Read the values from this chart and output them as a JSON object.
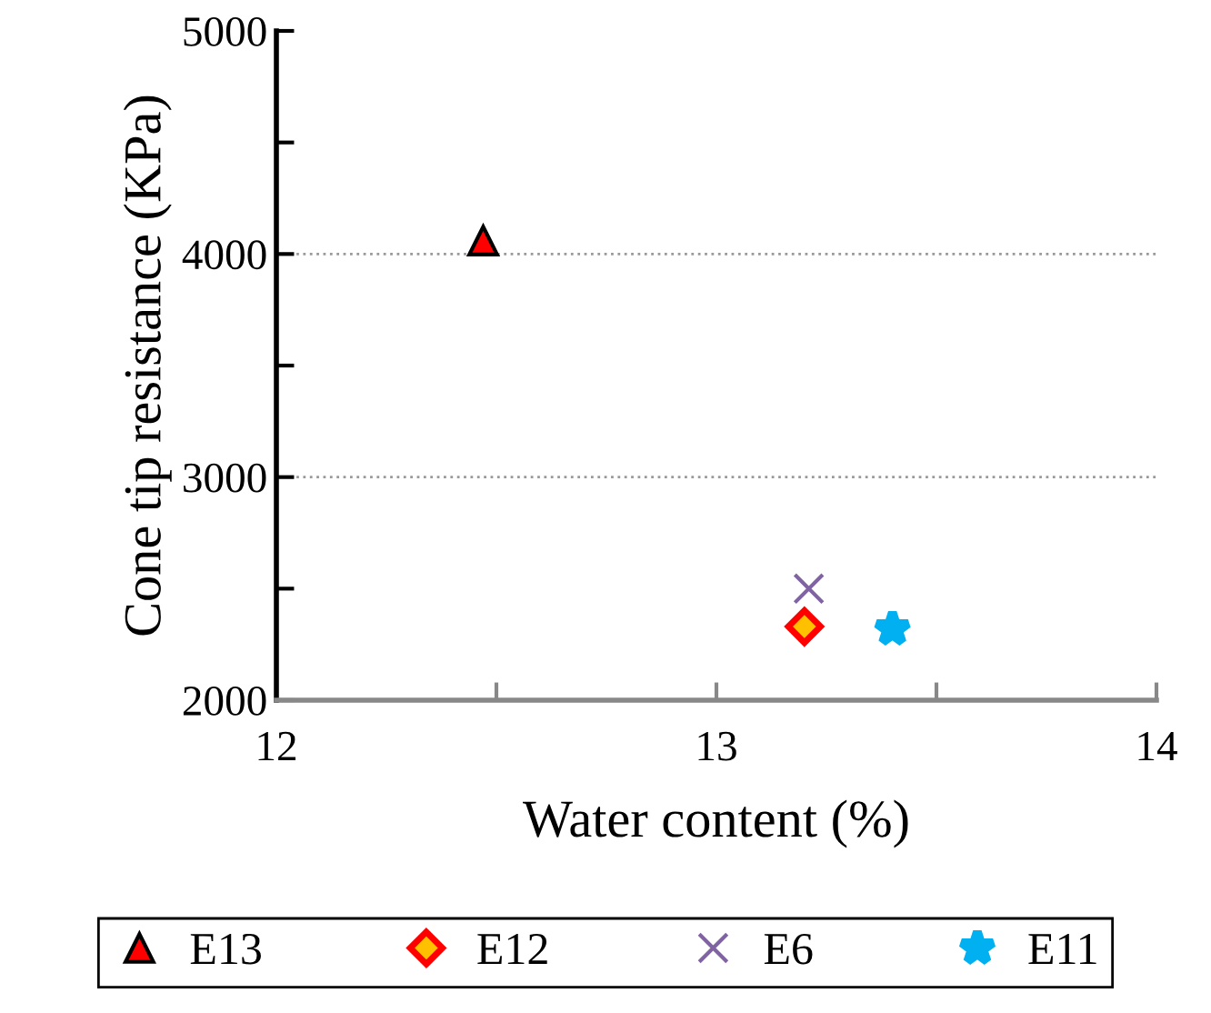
{
  "chart_data": {
    "type": "scatter",
    "xlabel": "Water content (%)",
    "ylabel": "Cone tip resistance (KPa)",
    "xlim": [
      12,
      14
    ],
    "xticks": [
      12,
      {
        "value": 12.5,
        "label": null
      },
      13,
      {
        "value": 13.5,
        "label": null
      },
      14
    ],
    "ylim": [
      2000,
      5000
    ],
    "yticks": [
      2000,
      {
        "value": 2500,
        "label": null
      },
      3000,
      {
        "value": 3500,
        "label": null
      },
      4000,
      {
        "value": 4500,
        "label": null
      },
      5000
    ],
    "grid": "y",
    "legend": "bottom",
    "series": [
      {
        "name": "E13",
        "color": "#ff0000",
        "marker": "triangle",
        "x": [
          12.47
        ],
        "values": [
          4060
        ]
      },
      {
        "name": "E12",
        "color": "#ff0000",
        "marker": "diamond",
        "x": [
          13.2
        ],
        "values": [
          2330
        ]
      },
      {
        "name": "E6",
        "color": "#8064a2",
        "marker": "cross",
        "x": [
          13.21
        ],
        "values": [
          2500
        ]
      },
      {
        "name": "E11",
        "color": "#00b0f0",
        "marker": "star",
        "x": [
          13.4
        ],
        "values": [
          2320
        ]
      }
    ]
  }
}
